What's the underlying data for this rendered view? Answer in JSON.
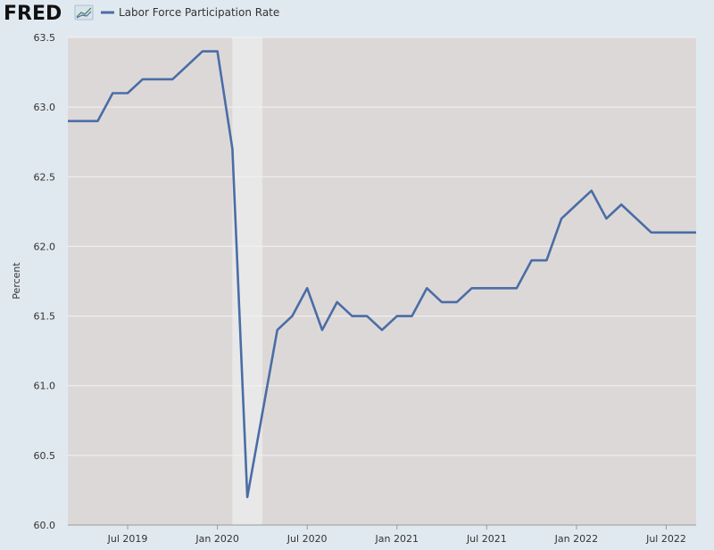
{
  "brand": {
    "logo_text": "FRED",
    "logo_icon": "fred-graph-icon"
  },
  "colors": {
    "series": "#4a6da6",
    "plot_background": "#ddd8d8",
    "page_background": "#e1e9f0",
    "recession_shading": "#e8e8e8",
    "gridline": "#f2f2f2"
  },
  "chart_data": {
    "type": "line",
    "title": "",
    "xlabel": "",
    "ylabel": "Percent",
    "ylim": [
      60.0,
      63.5
    ],
    "xlim": [
      "2019-03",
      "2022-09"
    ],
    "grid": true,
    "legend": {
      "placement": "top-left",
      "entries": [
        "Labor Force Participation Rate"
      ]
    },
    "yticks": [
      "60.0",
      "60.5",
      "61.0",
      "61.5",
      "62.0",
      "62.5",
      "63.0",
      "63.5"
    ],
    "xticks": [
      {
        "date": "2019-07",
        "label": "Jul 2019"
      },
      {
        "date": "2020-01",
        "label": "Jan 2020"
      },
      {
        "date": "2020-07",
        "label": "Jul 2020"
      },
      {
        "date": "2021-01",
        "label": "Jan 2021"
      },
      {
        "date": "2021-07",
        "label": "Jul 2021"
      },
      {
        "date": "2022-01",
        "label": "Jan 2022"
      },
      {
        "date": "2022-07",
        "label": "Jul 2022"
      }
    ],
    "recession": {
      "start": "2020-02",
      "end": "2020-04"
    },
    "series": [
      {
        "name": "Labor Force Participation Rate",
        "x": [
          "2019-03",
          "2019-04",
          "2019-05",
          "2019-06",
          "2019-07",
          "2019-08",
          "2019-09",
          "2019-10",
          "2019-11",
          "2019-12",
          "2020-01",
          "2020-02",
          "2020-03",
          "2020-04",
          "2020-05",
          "2020-06",
          "2020-07",
          "2020-08",
          "2020-09",
          "2020-10",
          "2020-11",
          "2020-12",
          "2021-01",
          "2021-02",
          "2021-03",
          "2021-04",
          "2021-05",
          "2021-06",
          "2021-07",
          "2021-08",
          "2021-09",
          "2021-10",
          "2021-11",
          "2021-12",
          "2022-01",
          "2022-02",
          "2022-03",
          "2022-04",
          "2022-05",
          "2022-06",
          "2022-07",
          "2022-08",
          "2022-09"
        ],
        "values": [
          62.9,
          62.9,
          62.9,
          63.1,
          63.1,
          63.2,
          63.2,
          63.2,
          63.3,
          63.4,
          63.4,
          62.7,
          60.2,
          60.8,
          61.4,
          61.5,
          61.7,
          61.4,
          61.6,
          61.5,
          61.5,
          61.4,
          61.5,
          61.5,
          61.7,
          61.6,
          61.6,
          61.7,
          61.7,
          61.7,
          61.7,
          61.9,
          61.9,
          62.2,
          62.3,
          62.4,
          62.2,
          62.3,
          62.2,
          62.1,
          62.1,
          62.1,
          62.1
        ]
      }
    ]
  }
}
